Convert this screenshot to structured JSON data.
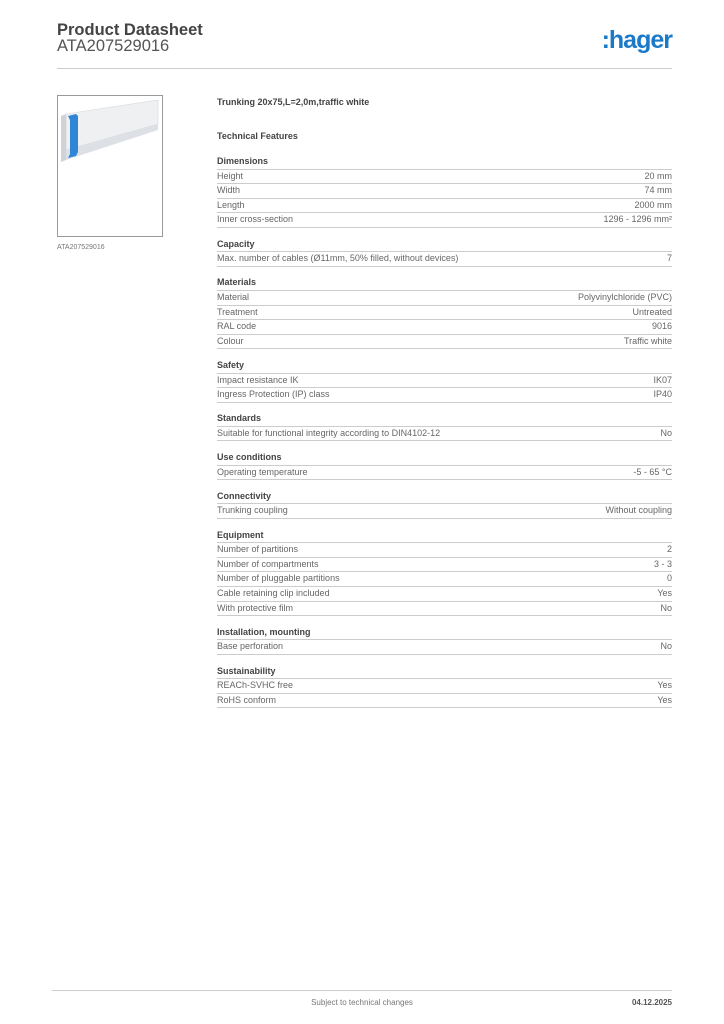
{
  "header": {
    "title": "Product Datasheet",
    "code": "ATA207529016",
    "logo": "hager",
    "brand_color": "#1a7ac9"
  },
  "product": {
    "image_caption": "ATA207529016",
    "name": "Trunking 20x75,L=2,0m,traffic white",
    "features_title": "Technical Features"
  },
  "sections": [
    {
      "title": "Dimensions",
      "rows": [
        [
          "Height",
          "20 mm"
        ],
        [
          "Width",
          "74 mm"
        ],
        [
          "Length",
          "2000 mm"
        ],
        [
          "Inner cross-section",
          "1296 - 1296 mm²"
        ]
      ]
    },
    {
      "title": "Capacity",
      "rows": [
        [
          "Max. number of cables (Ø11mm, 50% filled, without devices)",
          "7"
        ]
      ]
    },
    {
      "title": "Materials",
      "rows": [
        [
          "Material",
          "Polyvinylchloride (PVC)"
        ],
        [
          "Treatment",
          "Untreated"
        ],
        [
          "RAL code",
          "9016"
        ],
        [
          "Colour",
          "Traffic white"
        ]
      ]
    },
    {
      "title": "Safety",
      "rows": [
        [
          "Impact resistance IK",
          "IK07"
        ],
        [
          "Ingress Protection (IP) class",
          "IP40"
        ]
      ]
    },
    {
      "title": "Standards",
      "rows": [
        [
          "Suitable for functional integrity according to DIN4102-12",
          "No"
        ]
      ]
    },
    {
      "title": "Use conditions",
      "rows": [
        [
          "Operating temperature",
          "-5 - 65 °C"
        ]
      ]
    },
    {
      "title": "Connectivity",
      "rows": [
        [
          "Trunking coupling",
          "Without coupling"
        ]
      ]
    },
    {
      "title": "Equipment",
      "rows": [
        [
          "Number of partitions",
          "2"
        ],
        [
          "Number of compartments",
          "3 - 3"
        ],
        [
          "Number of pluggable partitions",
          "0"
        ],
        [
          "Cable retaining clip included",
          "Yes"
        ],
        [
          "With protective film",
          "No"
        ]
      ]
    },
    {
      "title": "Installation, mounting",
      "rows": [
        [
          "Base perforation",
          "No"
        ]
      ]
    },
    {
      "title": "Sustainability",
      "rows": [
        [
          "REACh-SVHC free",
          "Yes"
        ],
        [
          "RoHS conform",
          "Yes"
        ]
      ]
    }
  ],
  "footer": {
    "note": "Subject to technical changes",
    "date": "04.12.2025"
  }
}
